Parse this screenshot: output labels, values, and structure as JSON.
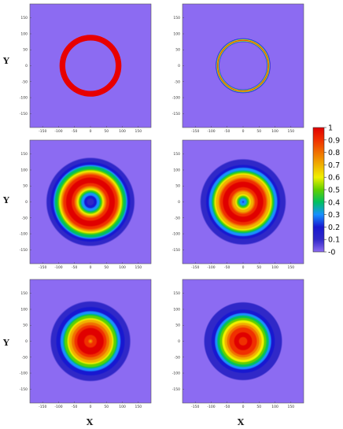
{
  "chart_data": {
    "type": "heatmap",
    "layout": "3 rows x 2 columns",
    "xlabel": "X",
    "ylabel": "Y",
    "x_ticks": [
      "-150",
      "-100",
      "-50",
      "0",
      "50",
      "100",
      "150"
    ],
    "y_ticks": [
      "150",
      "100",
      "50",
      "0",
      "-50",
      "-100",
      "-150"
    ],
    "xlim": [
      -190,
      190
    ],
    "ylim": [
      -190,
      190
    ],
    "colorbar": {
      "min": 0,
      "max": 1,
      "ticks": [
        "1",
        "0.9",
        "0.8",
        "0.7",
        "0.6",
        "0.5",
        "0.4",
        "0.3",
        "0.2",
        "0.1",
        "-0"
      ],
      "colors": [
        "#8c6bf2",
        "#3028c8",
        "#1818d0",
        "#1890ff",
        "#00c060",
        "#60d000",
        "#f0f000",
        "#f0b000",
        "#f07000",
        "#f03000",
        "#e00000"
      ]
    },
    "panels": [
      {
        "id": "row1-left",
        "rings": [
          {
            "radius": 88,
            "value": 1.0,
            "width": 18
          }
        ],
        "center": 0.0,
        "extent": 0
      },
      {
        "id": "row1-right",
        "rings": [
          {
            "radius": 80,
            "value": 1.0,
            "width": 11
          }
        ],
        "center": 0.0,
        "extent": 0
      },
      {
        "id": "row2-left",
        "rings": [
          {
            "radius": 68,
            "value": 1.0,
            "width": 22
          }
        ],
        "center": 0.0,
        "extent": 175
      },
      {
        "id": "row2-right",
        "rings": [
          {
            "radius": 55,
            "value": 1.0,
            "width": 24
          }
        ],
        "center": 0.0,
        "extent": 175
      },
      {
        "id": "row3-left",
        "rings": [
          {
            "radius": 30,
            "value": 1.0,
            "width": 30
          }
        ],
        "center": 0.0,
        "extent": 175
      },
      {
        "id": "row3-right",
        "rings": [
          {
            "radius": 20,
            "value": 0.97,
            "width": 32
          }
        ],
        "center": 0.55,
        "extent": 150
      }
    ]
  }
}
